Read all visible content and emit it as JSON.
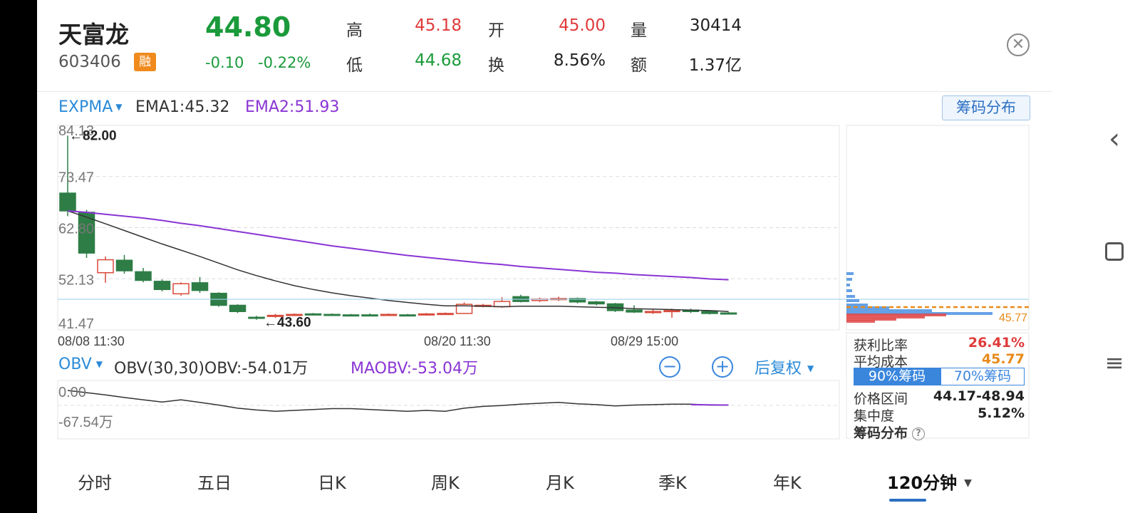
{
  "stock": {
    "name": "天富龙",
    "code": "603406",
    "rong_badge": "融",
    "price": "44.80",
    "change": "-0.10",
    "change_pct": "-0.22%",
    "quote": [
      {
        "label": "高",
        "value": "45.18",
        "color": "#e03a3a"
      },
      {
        "label": "开",
        "value": "45.00",
        "color": "#e03a3a"
      },
      {
        "label": "量",
        "value": "30414",
        "color": "#222222"
      },
      {
        "label": "低",
        "value": "44.68",
        "color": "#1a9a3a"
      },
      {
        "label": "换",
        "value": "8.56%",
        "color": "#222222"
      },
      {
        "label": "额",
        "value": "1.37亿",
        "color": "#222222"
      }
    ]
  },
  "main_indicator": {
    "name": "EXPMA",
    "ema1": "EMA1:45.32",
    "ema2": "EMA2:51.93",
    "chip_button": "筹码分布"
  },
  "chart_data": {
    "type": "candlestick",
    "y_ticks": [
      "84.13",
      "73.47",
      "62.80",
      "52.13",
      "41.47"
    ],
    "x_ticks": [
      "08/08 11:30",
      "08/20 11:30",
      "08/29 15:00"
    ],
    "max_marker": "82.00",
    "min_marker": "43.60",
    "last_line_label": "45.77",
    "candles": [
      {
        "o": 70.0,
        "c": 66.3,
        "h": 82.0,
        "l": 65.2
      },
      {
        "o": 66.0,
        "c": 57.5,
        "h": 66.5,
        "l": 56.5
      },
      {
        "o": 53.4,
        "c": 56.1,
        "h": 56.8,
        "l": 51.3
      },
      {
        "o": 56.0,
        "c": 53.8,
        "h": 57.1,
        "l": 53.2
      },
      {
        "o": 53.6,
        "c": 51.8,
        "h": 54.4,
        "l": 51.4
      },
      {
        "o": 51.6,
        "c": 49.9,
        "h": 52.0,
        "l": 49.5
      },
      {
        "o": 49.0,
        "c": 51.1,
        "h": 51.4,
        "l": 48.6
      },
      {
        "o": 51.3,
        "c": 49.7,
        "h": 52.5,
        "l": 49.2
      },
      {
        "o": 49.1,
        "c": 46.6,
        "h": 49.3,
        "l": 46.3
      },
      {
        "o": 46.6,
        "c": 45.3,
        "h": 46.8,
        "l": 45.0
      },
      {
        "o": 44.1,
        "c": 44.1,
        "h": 44.4,
        "l": 43.6
      },
      {
        "o": 44.3,
        "c": 44.5,
        "h": 44.8,
        "l": 44.0
      },
      {
        "o": 44.6,
        "c": 44.7,
        "h": 44.9,
        "l": 44.4
      },
      {
        "o": 44.8,
        "c": 44.7,
        "h": 45.0,
        "l": 44.5
      },
      {
        "o": 44.7,
        "c": 44.6,
        "h": 44.9,
        "l": 44.4
      },
      {
        "o": 44.6,
        "c": 44.6,
        "h": 44.8,
        "l": 44.4
      },
      {
        "o": 44.6,
        "c": 44.6,
        "h": 44.9,
        "l": 44.4
      },
      {
        "o": 44.6,
        "c": 44.7,
        "h": 44.9,
        "l": 44.4
      },
      {
        "o": 44.6,
        "c": 44.6,
        "h": 44.8,
        "l": 44.4
      },
      {
        "o": 44.7,
        "c": 44.8,
        "h": 45.0,
        "l": 44.5
      },
      {
        "o": 44.8,
        "c": 44.9,
        "h": 45.1,
        "l": 44.6
      },
      {
        "o": 44.9,
        "c": 46.8,
        "h": 47.2,
        "l": 44.8
      },
      {
        "o": 46.4,
        "c": 46.6,
        "h": 46.9,
        "l": 46.2
      },
      {
        "o": 46.3,
        "c": 47.4,
        "h": 48.3,
        "l": 46.1
      },
      {
        "o": 48.4,
        "c": 47.4,
        "h": 48.8,
        "l": 47.2
      },
      {
        "o": 47.6,
        "c": 47.9,
        "h": 48.2,
        "l": 47.3
      },
      {
        "o": 47.8,
        "c": 48.0,
        "h": 48.4,
        "l": 47.5
      },
      {
        "o": 48.0,
        "c": 47.3,
        "h": 48.2,
        "l": 47.0
      },
      {
        "o": 47.3,
        "c": 46.9,
        "h": 47.5,
        "l": 46.6
      },
      {
        "o": 46.9,
        "c": 45.5,
        "h": 47.1,
        "l": 45.2
      },
      {
        "o": 45.6,
        "c": 45.2,
        "h": 46.6,
        "l": 45.0
      },
      {
        "o": 45.2,
        "c": 45.3,
        "h": 45.9,
        "l": 44.8
      },
      {
        "o": 45.4,
        "c": 45.5,
        "h": 45.9,
        "l": 44.0
      },
      {
        "o": 45.6,
        "c": 45.3,
        "h": 45.9,
        "l": 45.0
      },
      {
        "o": 45.3,
        "c": 44.9,
        "h": 45.5,
        "l": 44.7
      },
      {
        "o": 45.0,
        "c": 44.8,
        "h": 45.2,
        "l": 44.7
      }
    ],
    "ema1": [
      66.3,
      65.0,
      63.6,
      62.2,
      60.8,
      59.4,
      58.1,
      56.8,
      55.4,
      54.0,
      52.8,
      51.7,
      50.7,
      49.9,
      49.2,
      48.6,
      48.1,
      47.6,
      47.2,
      46.8,
      46.5,
      46.5,
      46.4,
      46.3,
      46.4,
      46.4,
      46.4,
      46.3,
      46.2,
      46.1,
      45.9,
      45.8,
      45.7,
      45.6,
      45.5,
      45.3
    ],
    "ema2": [
      66.3,
      66.0,
      65.6,
      65.2,
      64.8,
      64.3,
      63.7,
      63.2,
      62.6,
      62.0,
      61.4,
      60.8,
      60.2,
      59.6,
      59.0,
      58.5,
      58.0,
      57.5,
      57.0,
      56.6,
      56.2,
      55.8,
      55.4,
      55.1,
      54.7,
      54.4,
      54.1,
      53.8,
      53.5,
      53.3,
      53.0,
      52.8,
      52.6,
      52.4,
      52.1,
      51.93
    ]
  },
  "chip_panel": {
    "rows": [
      {
        "label": "获利比率",
        "value": "26.41%",
        "color": "#e03a3a"
      },
      {
        "label": "平均成本",
        "value": "45.77",
        "color": "#e88a1a"
      }
    ],
    "tab_90": "90%筹码",
    "tab_70": "70%筹码",
    "range_label": "价格区间",
    "range_value": "44.17-48.94",
    "conc_label": "集中度",
    "conc_value": "5.12%",
    "footer": "筹码分布",
    "help": "?"
  },
  "sub_indicator": {
    "name": "OBV",
    "params": "OBV(30,30)OBV:-54.01万",
    "maobv": "MAOBV:-53.04万",
    "zoom_out": "−",
    "zoom_in": "+",
    "adjust": "后复权",
    "y_ticks": [
      "0.00",
      "-67.54万"
    ],
    "obv": [
      0,
      -5,
      -10,
      -16,
      -21,
      -26,
      -21,
      -27,
      -33,
      -40,
      -44,
      -47,
      -45,
      -43,
      -41,
      -41,
      -43,
      -45,
      -47,
      -45,
      -47,
      -40,
      -36,
      -34,
      -31,
      -29,
      -27,
      -30,
      -32,
      -35,
      -33,
      -32,
      -31,
      -31,
      -33,
      -33
    ],
    "maobv_series": [
      -32,
      -32.5,
      -33
    ]
  },
  "period_tabs": [
    "分时",
    "五日",
    "日K",
    "周K",
    "月K",
    "季K",
    "年K",
    "120分钟"
  ],
  "active_tab": "120分钟"
}
